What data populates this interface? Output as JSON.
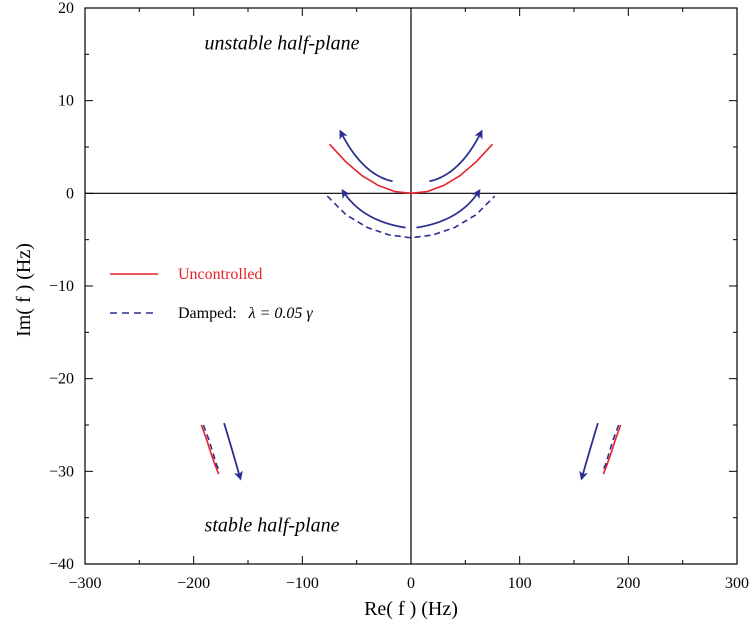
{
  "chart_data": {
    "type": "line",
    "title": "",
    "xlabel": "Re( f )   (Hz)",
    "ylabel": "Im( f )   (Hz)",
    "xlim": [
      -300,
      300
    ],
    "ylim": [
      -40,
      20
    ],
    "x_ticks": [
      -300,
      -200,
      -100,
      0,
      100,
      200,
      300
    ],
    "y_ticks": [
      -40,
      -30,
      -20,
      -10,
      0,
      10,
      20
    ],
    "x_tick_labels": [
      "−300",
      "−200",
      "−100",
      "0",
      "100",
      "200",
      "300"
    ],
    "y_tick_labels": [
      "−40",
      "−30",
      "−20",
      "−10",
      "0",
      "10",
      "20"
    ],
    "grid": false,
    "legend_position": "left",
    "colors": {
      "uncontrolled": "#e8202a",
      "damped": "#2a2f8f",
      "arrows": "#2a2f8f",
      "axes": "#000000"
    },
    "annotations": [
      {
        "text": "unstable half-plane",
        "x": -190,
        "y": 15.5
      },
      {
        "text": "stable half-plane",
        "x": -190,
        "y": -36.5
      }
    ],
    "series": [
      {
        "name": "Uncontrolled",
        "style": "solid",
        "color": "#e8202a",
        "segments": [
          [
            [
              -75,
              5.3
            ],
            [
              -60,
              3.4
            ],
            [
              -45,
              1.9
            ],
            [
              -30,
              0.85
            ],
            [
              -15,
              0.2
            ],
            [
              0,
              0
            ]
          ],
          [
            [
              0,
              0
            ],
            [
              15,
              0.2
            ],
            [
              30,
              0.85
            ],
            [
              45,
              1.9
            ],
            [
              60,
              3.4
            ],
            [
              75,
              5.3
            ]
          ],
          [
            [
              -193,
              -25
            ],
            [
              -188,
              -26.6
            ],
            [
              -184,
              -28.1
            ],
            [
              -180,
              -29.4
            ],
            [
              -177,
              -30.3
            ]
          ],
          [
            [
              193,
              -25
            ],
            [
              188,
              -26.6
            ],
            [
              184,
              -28.1
            ],
            [
              180,
              -29.4
            ],
            [
              177,
              -30.3
            ]
          ]
        ]
      },
      {
        "name": "Damped",
        "label_prefix": "Damped:",
        "label_formula": "λ = 0.05 γ",
        "style": "dashed",
        "color": "#2a2f8f",
        "segments": [
          [
            [
              -77,
              -0.3
            ],
            [
              -60,
              -2.3
            ],
            [
              -40,
              -3.7
            ],
            [
              -20,
              -4.5
            ],
            [
              0,
              -4.8
            ],
            [
              20,
              -4.5
            ],
            [
              40,
              -3.7
            ],
            [
              60,
              -2.3
            ],
            [
              77,
              -0.3
            ]
          ],
          [
            [
              -191,
              -25
            ],
            [
              -186,
              -26.6
            ],
            [
              -182,
              -28.1
            ],
            [
              -179,
              -29.3
            ],
            [
              -176,
              -30.0
            ]
          ],
          [
            [
              191,
              -25
            ],
            [
              186,
              -26.6
            ],
            [
              182,
              -28.1
            ],
            [
              179,
              -29.3
            ],
            [
              176,
              -30.0
            ]
          ]
        ]
      }
    ],
    "arrows": [
      {
        "from": [
          -17,
          1.3
        ],
        "ctrl": [
          -45,
          2.0
        ],
        "to": [
          -65,
          6.7
        ]
      },
      {
        "from": [
          17,
          1.3
        ],
        "ctrl": [
          45,
          2.0
        ],
        "to": [
          65,
          6.7
        ]
      },
      {
        "from": [
          -5,
          -3.7
        ],
        "ctrl": [
          -45,
          -3.0
        ],
        "to": [
          -63,
          0.3
        ]
      },
      {
        "from": [
          5,
          -3.7
        ],
        "ctrl": [
          45,
          -3.0
        ],
        "to": [
          63,
          0.3
        ]
      },
      {
        "from": [
          -172,
          -24.8
        ],
        "ctrl": [
          -165,
          -27.5
        ],
        "to": [
          -157,
          -30.8
        ]
      },
      {
        "from": [
          172,
          -24.8
        ],
        "ctrl": [
          165,
          -27.5
        ],
        "to": [
          157,
          -30.8
        ]
      }
    ]
  }
}
